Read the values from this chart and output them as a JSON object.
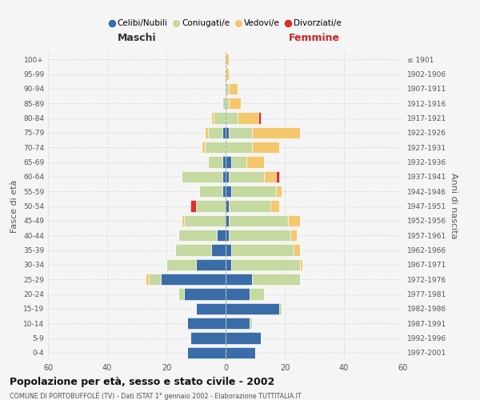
{
  "age_groups": [
    "0-4",
    "5-9",
    "10-14",
    "15-19",
    "20-24",
    "25-29",
    "30-34",
    "35-39",
    "40-44",
    "45-49",
    "50-54",
    "55-59",
    "60-64",
    "65-69",
    "70-74",
    "75-79",
    "80-84",
    "85-89",
    "90-94",
    "95-99",
    "100+"
  ],
  "birth_years": [
    "1997-2001",
    "1992-1996",
    "1987-1991",
    "1982-1986",
    "1977-1981",
    "1972-1976",
    "1967-1971",
    "1962-1966",
    "1957-1961",
    "1952-1956",
    "1947-1951",
    "1942-1946",
    "1937-1941",
    "1932-1936",
    "1927-1931",
    "1922-1926",
    "1917-1921",
    "1912-1916",
    "1907-1911",
    "1902-1906",
    "≤ 1901"
  ],
  "males": {
    "celibi": [
      13,
      12,
      13,
      10,
      14,
      22,
      10,
      5,
      3,
      0,
      0,
      1,
      1,
      1,
      0,
      1,
      0,
      0,
      0,
      0,
      0
    ],
    "coniugati": [
      0,
      0,
      0,
      0,
      2,
      4,
      10,
      12,
      13,
      14,
      10,
      8,
      14,
      5,
      7,
      5,
      4,
      1,
      0,
      0,
      0
    ],
    "vedovi": [
      0,
      0,
      0,
      0,
      0,
      1,
      0,
      0,
      0,
      1,
      0,
      0,
      0,
      0,
      1,
      1,
      1,
      0,
      0,
      0,
      0
    ],
    "divorziati": [
      0,
      0,
      0,
      0,
      0,
      0,
      0,
      0,
      0,
      0,
      2,
      0,
      0,
      0,
      0,
      0,
      0,
      0,
      0,
      0,
      0
    ]
  },
  "females": {
    "nubili": [
      10,
      12,
      8,
      18,
      8,
      9,
      2,
      2,
      1,
      1,
      1,
      2,
      1,
      2,
      0,
      1,
      0,
      0,
      0,
      0,
      0
    ],
    "coniugate": [
      0,
      0,
      1,
      1,
      5,
      16,
      23,
      21,
      21,
      20,
      14,
      15,
      12,
      5,
      9,
      8,
      4,
      1,
      1,
      0,
      0
    ],
    "vedove": [
      0,
      0,
      0,
      0,
      0,
      0,
      1,
      2,
      2,
      4,
      3,
      2,
      4,
      6,
      9,
      16,
      7,
      4,
      3,
      1,
      1
    ],
    "divorziate": [
      0,
      0,
      0,
      0,
      0,
      0,
      0,
      0,
      0,
      0,
      0,
      0,
      1,
      0,
      0,
      0,
      1,
      0,
      0,
      0,
      0
    ]
  },
  "colors": {
    "celibi_nubili": "#3a6ca8",
    "coniugati": "#c5d9a0",
    "vedovi": "#f5c86e",
    "divorziati": "#d9302e"
  },
  "title": "Popolazione per età, sesso e stato civile - 2002",
  "subtitle": "COMUNE DI PORTOBUFFOLÈ (TV) - Dati ISTAT 1° gennaio 2002 - Elaborazione TUTTITALIA.IT",
  "xlabel_left": "Maschi",
  "xlabel_right": "Femmine",
  "ylabel_left": "Fasce di età",
  "ylabel_right": "Anni di nascita",
  "xlim": 60,
  "background_color": "#f5f5f5",
  "grid_color": "#cccccc",
  "legend_labels": [
    "Celibi/Nubili",
    "Coniugati/e",
    "Vedovi/e",
    "Divorziati/e"
  ]
}
